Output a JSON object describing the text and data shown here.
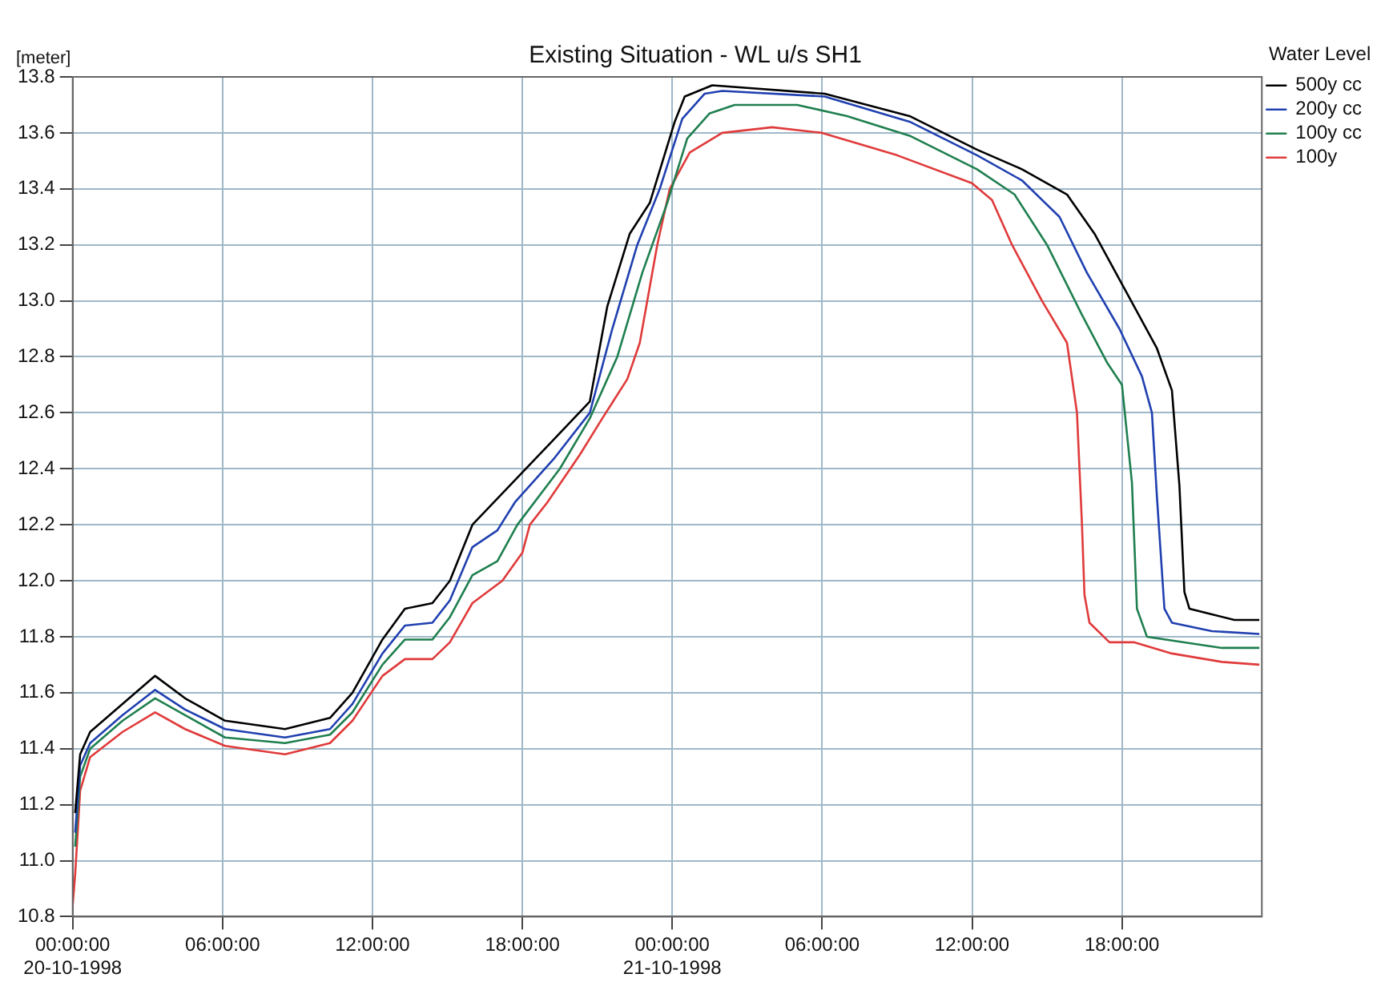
{
  "chart_data": {
    "type": "line",
    "title": "Existing Situation - WL u/s SH1",
    "ylabel": "[meter]",
    "legend_title": "Water Level",
    "legend": "right",
    "grid": true,
    "xlim": [
      "1998-10-20T00:00",
      "1998-10-21T23:36"
    ],
    "ylim": [
      10.8,
      13.8
    ],
    "xticks": [
      {
        "value": "1998-10-20T00:00",
        "label": "00:00:00\n20-10-1998"
      },
      {
        "value": "1998-10-20T06:00",
        "label": "06:00:00"
      },
      {
        "value": "1998-10-20T12:00",
        "label": "12:00:00"
      },
      {
        "value": "1998-10-20T18:00",
        "label": "18:00:00"
      },
      {
        "value": "1998-10-21T00:00",
        "label": "00:00:00\n21-10-1998"
      },
      {
        "value": "1998-10-21T06:00",
        "label": "06:00:00"
      },
      {
        "value": "1998-10-21T12:00",
        "label": "12:00:00"
      },
      {
        "value": "1998-10-21T18:00",
        "label": "18:00:00"
      }
    ],
    "yticks": [
      {
        "value": 10.8,
        "label": "10.8"
      },
      {
        "value": 11,
        "label": "11.0"
      },
      {
        "value": 11.2,
        "label": "11.2"
      },
      {
        "value": 11.4,
        "label": "11.4"
      },
      {
        "value": 11.6,
        "label": "11.6"
      },
      {
        "value": 11.8,
        "label": "11.8"
      },
      {
        "value": 12,
        "label": "12.0"
      },
      {
        "value": 12.2,
        "label": "12.2"
      },
      {
        "value": 12.4,
        "label": "12.4"
      },
      {
        "value": 12.6,
        "label": "12.6"
      },
      {
        "value": 12.8,
        "label": "12.8"
      },
      {
        "value": 13,
        "label": "13.0"
      },
      {
        "value": 13.2,
        "label": "13.2"
      },
      {
        "value": 13.4,
        "label": "13.4"
      },
      {
        "value": 13.6,
        "label": "13.6"
      },
      {
        "value": 13.8,
        "label": "13.8"
      }
    ],
    "series": [
      {
        "name": "500y cc",
        "color": "#000000",
        "x": [
          "1998-10-20T00:06",
          "1998-10-20T00:18",
          "1998-10-20T00:42",
          "1998-10-20T02:00",
          "1998-10-20T03:18",
          "1998-10-20T04:30",
          "1998-10-20T06:06",
          "1998-10-20T08:30",
          "1998-10-20T10:18",
          "1998-10-20T11:12",
          "1998-10-20T12:24",
          "1998-10-20T13:18",
          "1998-10-20T14:24",
          "1998-10-20T15:06",
          "1998-10-20T16:00",
          "1998-10-20T17:30",
          "1998-10-20T19:06",
          "1998-10-20T20:42",
          "1998-10-20T21:24",
          "1998-10-20T22:18",
          "1998-10-20T23:06",
          "1998-10-21T00:06",
          "1998-10-21T00:30",
          "1998-10-21T01:36",
          "1998-10-21T06:06",
          "1998-10-21T09:30",
          "1998-10-21T12:12",
          "1998-10-21T14:00",
          "1998-10-21T15:48",
          "1998-10-21T16:54",
          "1998-10-21T18:00",
          "1998-10-21T19:24",
          "1998-10-21T20:00",
          "1998-10-21T20:18",
          "1998-10-21T20:30",
          "1998-10-21T20:42",
          "1998-10-21T21:36",
          "1998-10-21T22:30",
          "1998-10-21T23:30"
        ],
        "values": [
          11.17,
          11.38,
          11.46,
          11.56,
          11.66,
          11.58,
          11.5,
          11.47,
          11.51,
          11.6,
          11.79,
          11.9,
          11.92,
          12.0,
          12.2,
          12.34,
          12.49,
          12.64,
          12.98,
          13.24,
          13.35,
          13.64,
          13.73,
          13.77,
          13.74,
          13.66,
          13.54,
          13.47,
          13.38,
          13.24,
          13.06,
          12.83,
          12.68,
          12.34,
          11.96,
          11.9,
          11.88,
          11.86,
          11.86
        ]
      },
      {
        "name": "200y cc",
        "color": "#2040b0",
        "x": [
          "1998-10-20T00:06",
          "1998-10-20T00:18",
          "1998-10-20T00:42",
          "1998-10-20T02:00",
          "1998-10-20T03:18",
          "1998-10-20T04:30",
          "1998-10-20T06:06",
          "1998-10-20T08:30",
          "1998-10-20T10:18",
          "1998-10-20T11:12",
          "1998-10-20T12:24",
          "1998-10-20T13:18",
          "1998-10-20T14:24",
          "1998-10-20T15:06",
          "1998-10-20T16:00",
          "1998-10-20T17:00",
          "1998-10-20T17:42",
          "1998-10-20T19:18",
          "1998-10-20T20:42",
          "1998-10-20T21:36",
          "1998-10-20T22:36",
          "1998-10-20T23:30",
          "1998-10-21T00:24",
          "1998-10-21T01:18",
          "1998-10-21T02:00",
          "1998-10-21T06:06",
          "1998-10-21T09:30",
          "1998-10-21T12:12",
          "1998-10-21T14:00",
          "1998-10-21T15:30",
          "1998-10-21T16:36",
          "1998-10-21T17:54",
          "1998-10-21T18:48",
          "1998-10-21T19:12",
          "1998-10-21T19:24",
          "1998-10-21T19:42",
          "1998-10-21T20:00",
          "1998-10-21T21:36",
          "1998-10-21T23:30"
        ],
        "values": [
          11.1,
          11.34,
          11.42,
          11.52,
          11.61,
          11.54,
          11.47,
          11.44,
          11.47,
          11.56,
          11.74,
          11.84,
          11.85,
          11.93,
          12.12,
          12.18,
          12.28,
          12.44,
          12.6,
          12.9,
          13.2,
          13.4,
          13.65,
          13.74,
          13.75,
          13.73,
          13.64,
          13.52,
          13.43,
          13.3,
          13.1,
          12.9,
          12.73,
          12.6,
          12.3,
          11.9,
          11.85,
          11.82,
          11.81
        ]
      },
      {
        "name": "100y cc",
        "color": "#1f7f4f",
        "x": [
          "1998-10-20T00:06",
          "1998-10-20T00:18",
          "1998-10-20T00:42",
          "1998-10-20T02:00",
          "1998-10-20T03:18",
          "1998-10-20T04:30",
          "1998-10-20T06:06",
          "1998-10-20T08:30",
          "1998-10-20T10:18",
          "1998-10-20T11:12",
          "1998-10-20T12:24",
          "1998-10-20T13:18",
          "1998-10-20T14:24",
          "1998-10-20T15:06",
          "1998-10-20T16:00",
          "1998-10-20T17:00",
          "1998-10-20T17:48",
          "1998-10-20T19:30",
          "1998-10-20T20:42",
          "1998-10-20T21:48",
          "1998-10-20T22:48",
          "1998-10-20T23:48",
          "1998-10-21T00:36",
          "1998-10-21T01:30",
          "1998-10-21T02:30",
          "1998-10-21T05:00",
          "1998-10-21T07:00",
          "1998-10-21T09:30",
          "1998-10-21T12:12",
          "1998-10-21T13:42",
          "1998-10-21T15:00",
          "1998-10-21T16:24",
          "1998-10-21T17:24",
          "1998-10-21T18:00",
          "1998-10-21T18:24",
          "1998-10-21T18:36",
          "1998-10-21T19:00",
          "1998-10-21T20:30",
          "1998-10-21T22:00",
          "1998-10-21T23:30"
        ],
        "values": [
          11.05,
          11.3,
          11.4,
          11.5,
          11.58,
          11.52,
          11.44,
          11.42,
          11.45,
          11.53,
          11.7,
          11.79,
          11.79,
          11.87,
          12.02,
          12.07,
          12.2,
          12.4,
          12.58,
          12.8,
          13.1,
          13.35,
          13.58,
          13.67,
          13.7,
          13.7,
          13.66,
          13.59,
          13.47,
          13.38,
          13.2,
          12.95,
          12.78,
          12.7,
          12.35,
          11.9,
          11.8,
          11.78,
          11.76,
          11.76
        ]
      },
      {
        "name": "100y",
        "color": "#e03a3a",
        "x": [
          "1998-10-20T00:00",
          "1998-10-20T00:06",
          "1998-10-20T00:18",
          "1998-10-20T00:42",
          "1998-10-20T02:00",
          "1998-10-20T03:18",
          "1998-10-20T04:30",
          "1998-10-20T06:06",
          "1998-10-20T08:30",
          "1998-10-20T10:18",
          "1998-10-20T11:12",
          "1998-10-20T12:24",
          "1998-10-20T13:18",
          "1998-10-20T14:24",
          "1998-10-20T15:06",
          "1998-10-20T16:00",
          "1998-10-20T17:12",
          "1998-10-20T18:00",
          "1998-10-20T18:18",
          "1998-10-20T19:00",
          "1998-10-20T20:18",
          "1998-10-20T21:12",
          "1998-10-20T22:12",
          "1998-10-20T22:42",
          "1998-10-20T23:24",
          "1998-10-20T23:54",
          "1998-10-21T00:42",
          "1998-10-21T02:00",
          "1998-10-21T04:00",
          "1998-10-21T06:00",
          "1998-10-21T09:00",
          "1998-10-21T12:00",
          "1998-10-21T12:48",
          "1998-10-21T13:36",
          "1998-10-21T14:48",
          "1998-10-21T15:48",
          "1998-10-21T16:12",
          "1998-10-21T16:24",
          "1998-10-21T16:30",
          "1998-10-21T16:42",
          "1998-10-21T17:30",
          "1998-10-21T18:30",
          "1998-10-21T20:00",
          "1998-10-21T22:00",
          "1998-10-21T23:30"
        ],
        "values": [
          10.84,
          10.95,
          11.25,
          11.37,
          11.46,
          11.53,
          11.47,
          11.41,
          11.38,
          11.42,
          11.5,
          11.66,
          11.72,
          11.72,
          11.78,
          11.92,
          12.0,
          12.1,
          12.2,
          12.28,
          12.45,
          12.58,
          12.72,
          12.85,
          13.2,
          13.4,
          13.53,
          13.6,
          13.62,
          13.6,
          13.52,
          13.42,
          13.36,
          13.2,
          13.0,
          12.85,
          12.6,
          12.2,
          11.95,
          11.85,
          11.78,
          11.78,
          11.74,
          11.71,
          11.7
        ]
      }
    ]
  }
}
